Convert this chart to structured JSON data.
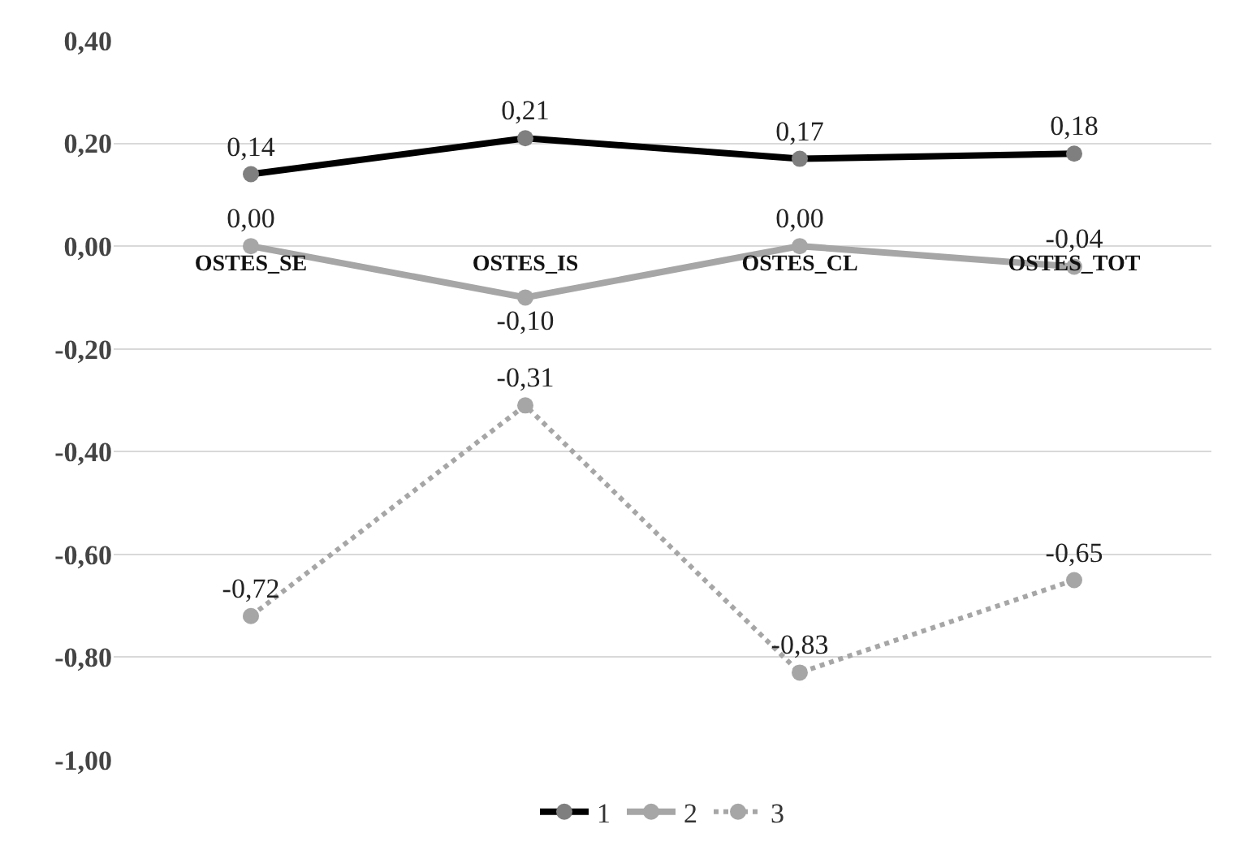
{
  "chart_data": {
    "type": "line",
    "categories": [
      "OSTES_SE",
      "OSTES_IS",
      "OSTES_CL",
      "OSTES_TOT"
    ],
    "series": [
      {
        "name": "1",
        "color": "#000000",
        "values": [
          0.14,
          0.21,
          0.17,
          0.18
        ],
        "value_labels": [
          "0,14",
          "0,21",
          "0,17",
          "0,18"
        ],
        "line_style": "solid"
      },
      {
        "name": "2",
        "color": "#a6a6a6",
        "values": [
          0.0,
          -0.1,
          0.0,
          -0.04
        ],
        "value_labels": [
          "0,00",
          "-0,10",
          "0,00",
          "-0,04"
        ],
        "line_style": "solid"
      },
      {
        "name": "3",
        "color": "#a6a6a6",
        "values": [
          -0.72,
          -0.31,
          -0.83,
          -0.65
        ],
        "value_labels": [
          "-0,72",
          "-0,31",
          "-0,83",
          "-0,65"
        ],
        "line_style": "dotted"
      }
    ],
    "ylim": [
      -1.0,
      0.4
    ],
    "yticks": [
      {
        "value": -1.0,
        "label": "-1,00"
      },
      {
        "value": -0.8,
        "label": "-0,80"
      },
      {
        "value": -0.6,
        "label": "-0,60"
      },
      {
        "value": -0.4,
        "label": "-0,40"
      },
      {
        "value": -0.2,
        "label": "-0,20"
      },
      {
        "value": 0.0,
        "label": "0,00"
      },
      {
        "value": 0.2,
        "label": "0,20"
      },
      {
        "value": 0.4,
        "label": "0,40"
      }
    ],
    "grid": "y",
    "legend": "bottom",
    "marker": "circle"
  }
}
